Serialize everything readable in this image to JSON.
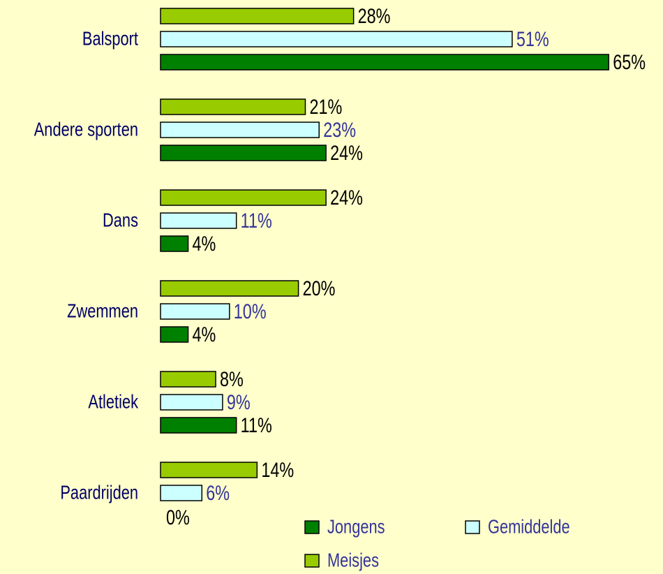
{
  "chart_data": {
    "type": "bar",
    "orientation": "horizontal",
    "categories": [
      "Balsport",
      "Andere sporten",
      "Dans",
      "Zwemmen",
      "Atletiek",
      "Paardrijden"
    ],
    "series": [
      {
        "name": "Jongens",
        "color": "#008000",
        "values": [
          65,
          24,
          4,
          4,
          11,
          0
        ],
        "value_labels": [
          "65%",
          "24%",
          "4%",
          "4%",
          "11%",
          "0%"
        ]
      },
      {
        "name": "Gemiddelde",
        "color": "#ccffff",
        "values": [
          51,
          23,
          11,
          10,
          9,
          6
        ],
        "value_labels": [
          "51%",
          "23%",
          "11%",
          "10%",
          "9%",
          "6%"
        ]
      },
      {
        "name": "Meisjes",
        "color": "#99cc00",
        "values": [
          28,
          21,
          24,
          20,
          8,
          14
        ],
        "value_labels": [
          "28%",
          "21%",
          "24%",
          "20%",
          "8%",
          "14%"
        ]
      }
    ]
  }
}
